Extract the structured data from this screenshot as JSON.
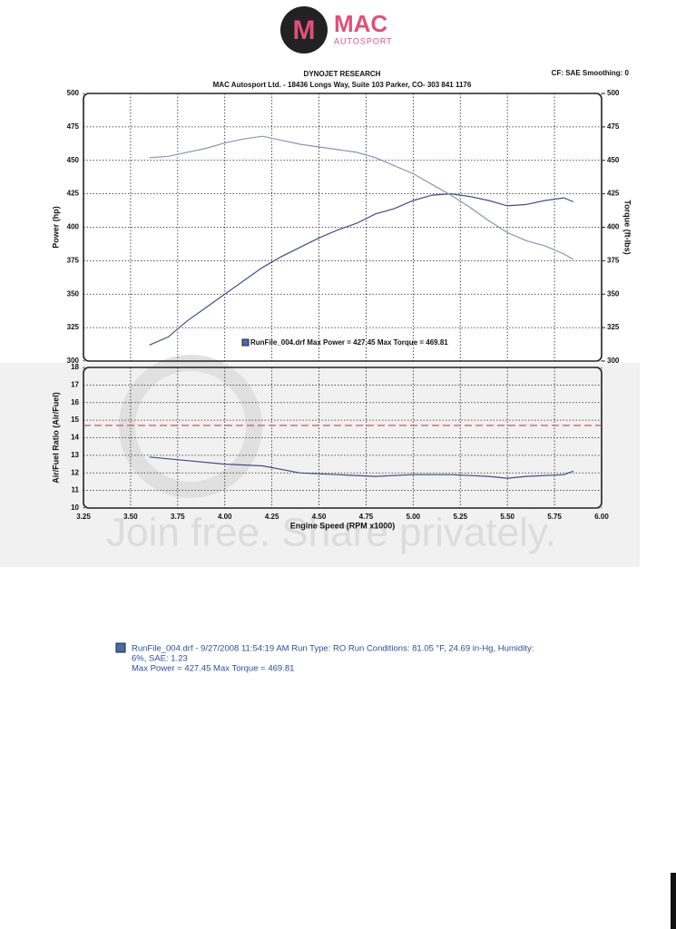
{
  "logo": {
    "title": "MAC",
    "subtitle": "AUTOSPORT"
  },
  "header": {
    "title": "DYNOJET RESEARCH",
    "subtitle": "MAC Autosport Ltd. - 18436 Longs Way, Suite 103 Parker, CO- 303 841 1176",
    "settings": "CF: SAE  Smoothing: 0"
  },
  "watermark": "Join free. Share privately.",
  "chart_data": [
    {
      "type": "line",
      "ylabel": "Power (hp)",
      "y2label": "Torque (ft-lbs)",
      "legend_label": "RunFile_004.drf Max Power = 427.45     Max Torque = 469.81",
      "x": [
        3.6,
        3.7,
        3.8,
        3.9,
        4.0,
        4.1,
        4.2,
        4.3,
        4.4,
        4.5,
        4.6,
        4.7,
        4.8,
        4.9,
        5.0,
        5.1,
        5.2,
        5.3,
        5.4,
        5.5,
        5.6,
        5.7,
        5.8,
        5.85
      ],
      "series": [
        {
          "color": "#3d4f86",
          "values": [
            312,
            318,
            330,
            340,
            350,
            360,
            370,
            378,
            385,
            392,
            398,
            403,
            410,
            414,
            420,
            424,
            425,
            423,
            420,
            416,
            417,
            420,
            422,
            419
          ]
        },
        {
          "color": "#8a93b8",
          "axis": "y2",
          "values": [
            452,
            453,
            456,
            459,
            463,
            466,
            468,
            465,
            462,
            460,
            458,
            456,
            452,
            446,
            440,
            432,
            424,
            415,
            405,
            396,
            390,
            386,
            380,
            376
          ]
        }
      ],
      "xlim": [
        3.25,
        6.0
      ],
      "xticks": [
        3.25,
        {
          "value": 3.5,
          "label": "3.50"
        },
        3.75,
        {
          "value": 4.0,
          "label": "4.00"
        },
        4.25,
        {
          "value": 4.5,
          "label": "4.50"
        },
        4.75,
        {
          "value": 5.0,
          "label": "5.00"
        },
        5.25,
        {
          "value": 5.5,
          "label": "5.50"
        },
        5.75,
        {
          "value": 6.0,
          "label": "6.00"
        }
      ],
      "ylim": [
        300,
        500
      ],
      "yticks": [
        300,
        325,
        350,
        375,
        400,
        425,
        450,
        475,
        500
      ],
      "y2lim": [
        300,
        500
      ],
      "y2ticks": [
        300,
        325,
        350,
        375,
        400,
        425,
        450,
        475,
        500
      ],
      "grid": true
    },
    {
      "type": "line",
      "ylabel": "Air/Fuel Ratio (Air/Fuel)",
      "xlabel": "Engine Speed (RPM x1000)",
      "x": [
        3.6,
        3.8,
        4.0,
        4.2,
        4.4,
        4.6,
        4.8,
        5.0,
        5.2,
        5.4,
        5.5,
        5.6,
        5.8,
        5.85
      ],
      "series": [
        {
          "color": "#3d4f86",
          "values": [
            12.9,
            12.7,
            12.5,
            12.4,
            12.0,
            11.9,
            11.8,
            11.9,
            11.9,
            11.8,
            11.7,
            11.8,
            11.9,
            12.1
          ]
        }
      ],
      "reference_line": 14.7,
      "reference_color": "#d04060",
      "xlim": [
        3.25,
        6.0
      ],
      "xticks": [
        3.25,
        {
          "value": 3.5,
          "label": "3.50"
        },
        3.75,
        {
          "value": 4.0,
          "label": "4.00"
        },
        4.25,
        {
          "value": 4.5,
          "label": "4.50"
        },
        4.75,
        {
          "value": 5.0,
          "label": "5.00"
        },
        5.25,
        {
          "value": 5.5,
          "label": "5.50"
        },
        5.75,
        {
          "value": 6.0,
          "label": "6.00"
        }
      ],
      "ylim": [
        10,
        18
      ],
      "yticks": [
        10,
        11,
        12,
        13,
        14,
        15,
        16,
        17,
        18
      ],
      "grid": true
    }
  ],
  "footer": {
    "line1": "RunFile_004.drf - 9/27/2008 11:54:19 AM  Run Type: RO  Run Conditions: 81.05 °F, 24.69 in-Hg,  Humidity:",
    "line2": "6%, SAE: 1.23",
    "line3": "Max Power = 427.45  Max Torque = 469.81"
  }
}
